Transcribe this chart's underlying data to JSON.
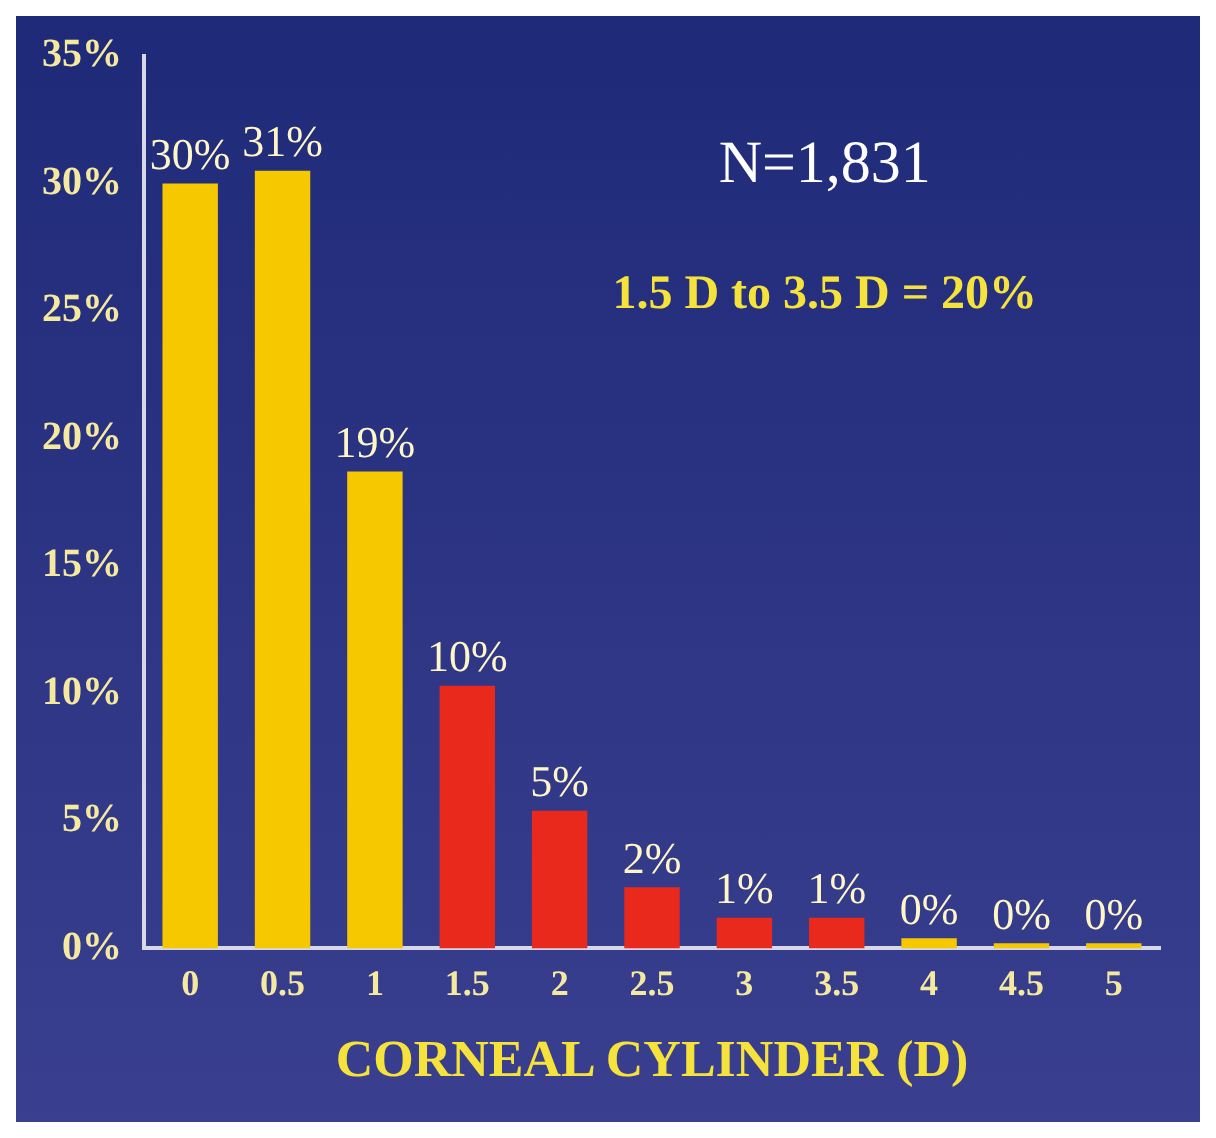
{
  "chart_data": {
    "type": "bar",
    "xlabel": "CORNEAL CYLINDER (D)",
    "categories": [
      "0",
      "0.5",
      "1",
      "1.5",
      "2",
      "2.5",
      "3",
      "3.5",
      "4",
      "4.5",
      "5"
    ],
    "values": [
      30,
      30.5,
      18.7,
      10.3,
      5.4,
      2.4,
      1.2,
      1.2,
      0.4,
      0.2,
      0.2
    ],
    "value_labels": [
      "30%",
      "31%",
      "19%",
      "10%",
      "5%",
      "2%",
      "1%",
      "1%",
      "0%",
      "0%",
      "0%"
    ],
    "colors": [
      "#f5c800",
      "#f5c800",
      "#f5c800",
      "#e8291b",
      "#e8291b",
      "#e8291b",
      "#e8291b",
      "#e8291b",
      "#f5c800",
      "#f5c800",
      "#f5c800"
    ],
    "ylim": [
      0,
      35
    ],
    "yticks": [
      {
        "value": 0,
        "label": "0%"
      },
      {
        "value": 5,
        "label": "5%"
      },
      {
        "value": 10,
        "label": "10%"
      },
      {
        "value": 15,
        "label": "15%"
      },
      {
        "value": 20,
        "label": "20%"
      },
      {
        "value": 25,
        "label": "25%"
      },
      {
        "value": 30,
        "label": "30%"
      },
      {
        "value": 35,
        "label": "35%"
      }
    ],
    "annotations": [
      "N=1,831",
      "1.5 D to 3.5 D = 20%"
    ],
    "grid": false,
    "legend": false
  }
}
